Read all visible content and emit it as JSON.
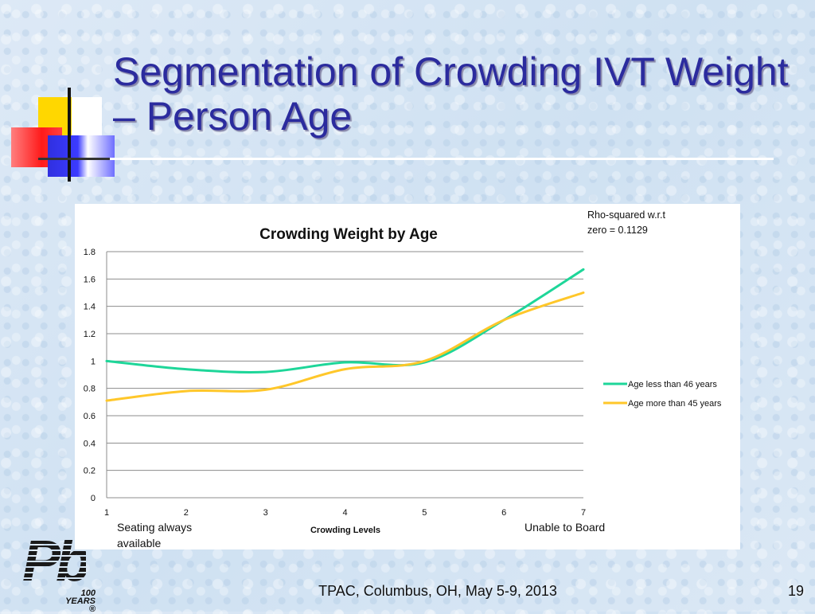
{
  "slide": {
    "title": "Segmentation of Crowding IVT Weight – Person Age",
    "footer": "TPAC, Columbus, OH, May 5-9, 2013",
    "page_number": "19",
    "logo": {
      "text": "Pb",
      "years_number": "100",
      "years_label": "YEARS ®"
    },
    "annotation_line1": "Rho-squared w.r.t",
    "annotation_line2": "zero = 0.1129",
    "xnote_left_line1": "Seating always",
    "xnote_left_line2": "available",
    "xnote_right": "Unable to Board"
  },
  "chart_data": {
    "type": "line",
    "title": "Crowding Weight by Age",
    "xlabel": "Crowding Levels",
    "ylabel": "",
    "x": [
      1,
      2,
      3,
      4,
      5,
      6,
      7
    ],
    "ylim": [
      0,
      1.8
    ],
    "yticks": [
      0,
      0.2,
      0.4,
      0.6,
      0.8,
      1,
      1.2,
      1.4,
      1.6,
      1.8
    ],
    "grid": true,
    "legend_position": "right",
    "series": [
      {
        "name": "Age less than 46 years",
        "color": "#1ed699",
        "values": [
          1.0,
          0.94,
          0.92,
          0.99,
          0.99,
          1.3,
          1.67
        ]
      },
      {
        "name": "Age more than 45 years",
        "color": "#ffc72a",
        "values": [
          0.71,
          0.78,
          0.79,
          0.94,
          1.0,
          1.3,
          1.5
        ]
      }
    ]
  }
}
